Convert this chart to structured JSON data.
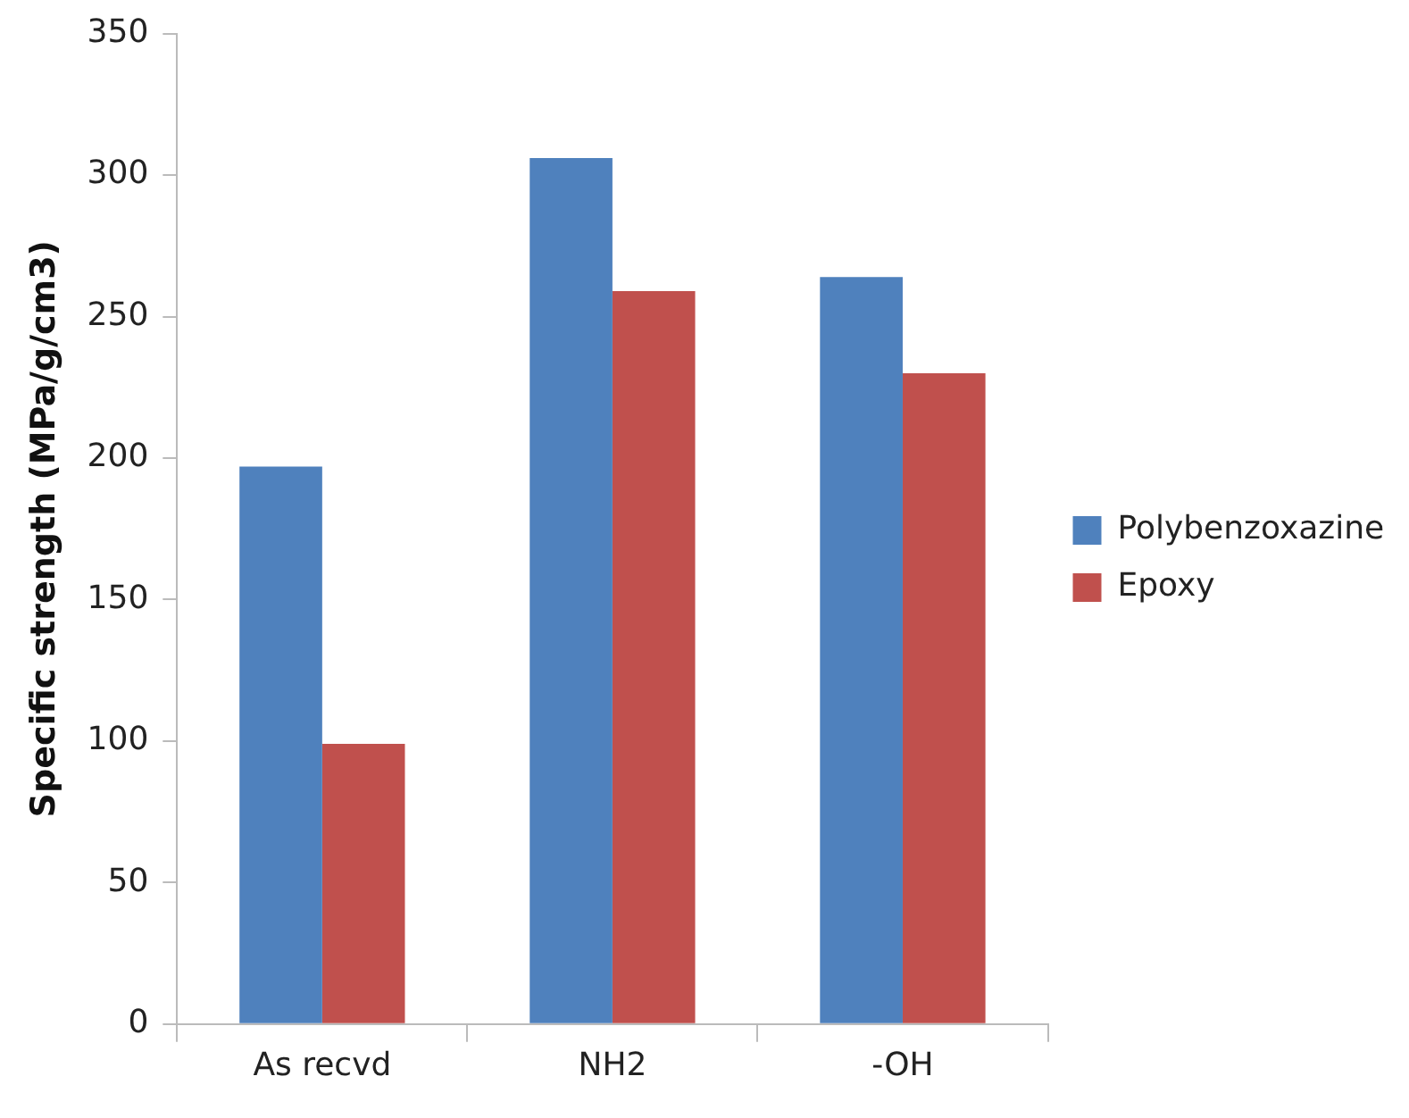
{
  "chart_data": {
    "type": "bar",
    "ylabel": "Specific strength (MPa/g/cm3)",
    "categories": [
      "As recvd",
      "NH2",
      "-OH"
    ],
    "series": [
      {
        "name": "Polybenzoxazine",
        "color": "#4f81bd",
        "values": [
          197,
          306,
          264
        ]
      },
      {
        "name": "Epoxy",
        "color": "#c0504d",
        "values": [
          99,
          259,
          230
        ]
      }
    ],
    "ylim": [
      0,
      350
    ],
    "yticks": [
      0,
      50,
      100,
      150,
      200,
      250,
      300,
      350
    ],
    "grid": false,
    "legend": "right"
  }
}
